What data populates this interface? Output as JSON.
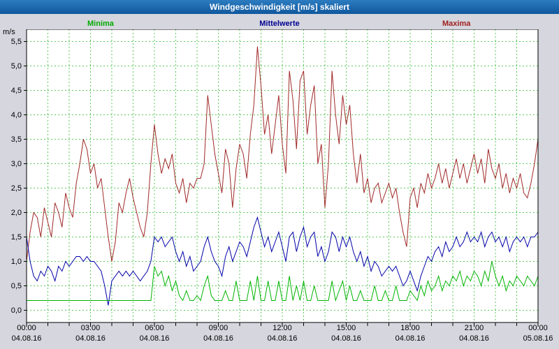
{
  "header": {
    "title": "Windgeschwindigkeit [m/s] skaliert"
  },
  "legend": [
    {
      "label": "Minima",
      "color": "#00aa00"
    },
    {
      "label": "Mittelwerte",
      "color": "#000090"
    },
    {
      "label": "Maxima",
      "color": "#a02020"
    }
  ],
  "chart_data": {
    "type": "line",
    "title": "Windgeschwindigkeit [m/s] skaliert",
    "unit": "m/s",
    "ylabel": "m/s",
    "xlabel": "",
    "ylim": [
      -0.25,
      5.75
    ],
    "y_tick_step": 0.5,
    "y_ticks": [
      "0,0",
      "0,5",
      "1,0",
      "1,5",
      "2,0",
      "2,5",
      "3,0",
      "3,5",
      "4,0",
      "4,5",
      "5,0",
      "5,5"
    ],
    "x_hours": 24,
    "interval_minutes": 10,
    "grid": true,
    "grid_color": "#3fbf3f",
    "x_ticks": [
      {
        "time": "00:00",
        "date": "04.08.16"
      },
      {
        "time": "03:00",
        "date": "04.08.16"
      },
      {
        "time": "06:00",
        "date": "04.08.16"
      },
      {
        "time": "09:00",
        "date": "04.08.16"
      },
      {
        "time": "12:00",
        "date": "04.08.16"
      },
      {
        "time": "15:00",
        "date": "04.08.16"
      },
      {
        "time": "18:00",
        "date": "04.08.16"
      },
      {
        "time": "21:00",
        "date": "04.08.16"
      },
      {
        "time": "00:00",
        "date": "05.08.16"
      }
    ],
    "series": [
      {
        "name": "Maxima",
        "color": "#a02828",
        "values": [
          1.0,
          1.6,
          2.0,
          1.9,
          1.5,
          2.1,
          1.8,
          1.5,
          2.2,
          2.0,
          1.7,
          2.4,
          2.1,
          1.9,
          2.6,
          3.0,
          3.5,
          3.3,
          2.8,
          3.0,
          2.5,
          2.7,
          2.1,
          1.5,
          1.0,
          1.4,
          2.2,
          2.0,
          2.4,
          2.7,
          2.3,
          2.0,
          1.7,
          1.5,
          2.0,
          3.0,
          3.8,
          3.2,
          2.8,
          3.1,
          2.9,
          3.2,
          2.6,
          2.4,
          2.7,
          2.2,
          2.6,
          2.5,
          2.7,
          2.7,
          3.0,
          4.4,
          3.8,
          3.2,
          2.8,
          2.4,
          3.3,
          3.0,
          2.1,
          2.9,
          3.4,
          3.2,
          2.7,
          3.6,
          4.2,
          5.4,
          4.6,
          3.6,
          4.0,
          3.2,
          3.8,
          4.4,
          3.4,
          2.8,
          4.9,
          4.3,
          3.3,
          4.7,
          4.9,
          3.6,
          4.2,
          4.6,
          3.0,
          3.4,
          2.1,
          3.0,
          4.9,
          4.0,
          3.4,
          4.4,
          3.8,
          4.2,
          3.2,
          2.6,
          3.2,
          2.4,
          2.7,
          2.2,
          2.5,
          2.6,
          2.2,
          2.4,
          2.6,
          2.3,
          2.5,
          2.0,
          1.6,
          1.3,
          2.3,
          2.5,
          2.1,
          2.6,
          2.4,
          2.8,
          2.5,
          2.7,
          3.0,
          2.6,
          2.9,
          2.5,
          2.8,
          3.1,
          2.7,
          3.0,
          2.6,
          2.9,
          3.2,
          2.8,
          3.1,
          2.6,
          3.3,
          2.9,
          2.7,
          3.0,
          2.5,
          2.8,
          2.4,
          2.7,
          2.5,
          2.8,
          2.4,
          2.3,
          2.6,
          3.0,
          3.5
        ]
      },
      {
        "name": "Mittelwerte",
        "color": "#0000a8",
        "values": [
          1.5,
          1.0,
          0.7,
          0.6,
          0.8,
          0.7,
          0.9,
          0.8,
          0.6,
          0.9,
          0.8,
          1.0,
          0.9,
          1.0,
          1.1,
          1.1,
          1.0,
          1.1,
          1.0,
          1.0,
          0.9,
          0.8,
          0.5,
          0.1,
          0.6,
          0.7,
          0.8,
          0.7,
          0.8,
          0.7,
          0.8,
          0.7,
          0.6,
          0.7,
          0.8,
          1.0,
          1.5,
          1.4,
          1.5,
          1.3,
          1.4,
          1.5,
          1.2,
          1.0,
          1.2,
          0.9,
          1.1,
          0.8,
          0.9,
          1.0,
          1.3,
          1.5,
          1.2,
          1.0,
          0.9,
          0.7,
          1.1,
          1.3,
          1.0,
          1.2,
          1.4,
          1.3,
          1.1,
          1.4,
          1.7,
          1.9,
          1.6,
          1.3,
          1.5,
          1.2,
          1.4,
          1.6,
          1.3,
          1.0,
          1.5,
          1.6,
          1.2,
          1.5,
          1.7,
          1.3,
          1.5,
          1.6,
          1.1,
          1.3,
          1.0,
          1.2,
          1.6,
          1.5,
          1.2,
          1.5,
          1.3,
          1.5,
          1.2,
          1.0,
          1.2,
          0.9,
          1.1,
          0.8,
          1.0,
          0.9,
          0.7,
          0.8,
          0.9,
          0.8,
          0.9,
          0.7,
          0.5,
          0.6,
          0.8,
          0.6,
          0.4,
          0.7,
          0.9,
          1.1,
          1.0,
          1.2,
          1.3,
          1.1,
          1.4,
          1.2,
          1.3,
          1.5,
          1.3,
          1.4,
          1.6,
          1.4,
          1.5,
          1.4,
          1.6,
          1.3,
          1.5,
          1.6,
          1.4,
          1.5,
          1.3,
          1.5,
          1.2,
          1.4,
          1.5,
          1.4,
          1.5,
          1.3,
          1.5,
          1.5,
          1.6
        ]
      },
      {
        "name": "Minima",
        "color": "#00b400",
        "values": [
          0.2,
          0.2,
          0.2,
          0.2,
          0.2,
          0.2,
          0.2,
          0.2,
          0.2,
          0.2,
          0.2,
          0.2,
          0.2,
          0.2,
          0.2,
          0.2,
          0.2,
          0.2,
          0.2,
          0.2,
          0.2,
          0.2,
          0.2,
          0.2,
          0.2,
          0.2,
          0.2,
          0.2,
          0.2,
          0.2,
          0.2,
          0.2,
          0.2,
          0.2,
          0.2,
          0.2,
          0.9,
          0.7,
          0.8,
          0.5,
          0.7,
          0.4,
          0.6,
          0.3,
          0.2,
          0.4,
          0.2,
          0.2,
          0.3,
          0.2,
          0.5,
          0.7,
          0.3,
          0.2,
          0.2,
          0.2,
          0.4,
          0.2,
          0.2,
          0.6,
          0.2,
          0.2,
          0.2,
          0.6,
          0.2,
          0.7,
          0.2,
          0.2,
          0.6,
          0.2,
          0.2,
          0.6,
          0.2,
          0.2,
          0.7,
          0.2,
          0.5,
          0.2,
          0.6,
          0.2,
          0.2,
          0.5,
          0.2,
          0.2,
          0.2,
          0.2,
          0.6,
          0.2,
          0.4,
          0.6,
          0.2,
          0.5,
          0.2,
          0.2,
          0.4,
          0.2,
          0.2,
          0.2,
          0.5,
          0.2,
          0.2,
          0.4,
          0.2,
          0.2,
          0.5,
          0.2,
          0.2,
          0.2,
          0.4,
          0.3,
          0.2,
          0.5,
          0.3,
          0.6,
          0.4,
          0.5,
          0.7,
          0.4,
          0.6,
          0.5,
          0.7,
          0.6,
          0.8,
          0.5,
          0.7,
          0.6,
          0.8,
          0.7,
          0.5,
          0.8,
          0.6,
          1.0,
          0.7,
          0.5,
          0.7,
          0.4,
          0.6,
          0.5,
          0.7,
          0.6,
          0.5,
          0.7,
          0.6,
          0.5,
          0.7
        ]
      }
    ]
  }
}
